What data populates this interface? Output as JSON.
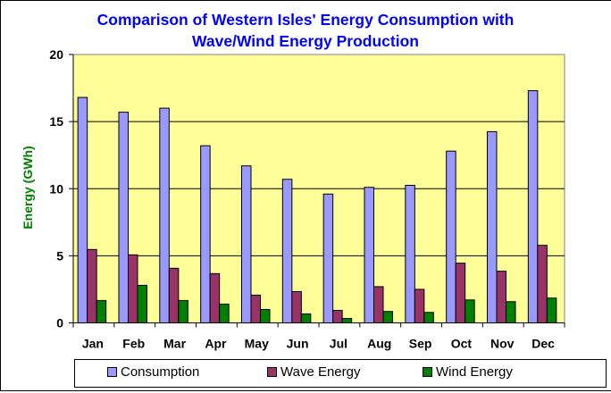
{
  "chart_data": {
    "type": "bar",
    "title": "Comparison of Western Isles' Energy Consumption with Wave/Wind Energy Production",
    "title_lines": [
      "Comparison of Western Isles' Energy Consumption with",
      "Wave/Wind Energy Production"
    ],
    "xlabel": "",
    "ylabel": "Energy (GWh)",
    "ylim": [
      0,
      20
    ],
    "yticks": [
      0,
      5,
      10,
      15,
      20
    ],
    "grid": true,
    "legend_position": "bottom",
    "categories": [
      "Jan",
      "Feb",
      "Mar",
      "Apr",
      "May",
      "Jun",
      "Jul",
      "Aug",
      "Sep",
      "Oct",
      "Nov",
      "Dec"
    ],
    "series": [
      {
        "name": "Consumption",
        "color": "#9999FF",
        "values": [
          16.8,
          15.7,
          16.0,
          13.2,
          11.7,
          10.7,
          9.6,
          10.1,
          10.25,
          12.8,
          14.25,
          17.3
        ]
      },
      {
        "name": "Wave Energy",
        "color": "#993366",
        "values": [
          5.47,
          5.07,
          4.07,
          3.67,
          2.07,
          2.33,
          0.93,
          2.7,
          2.5,
          4.45,
          3.85,
          5.78
        ]
      },
      {
        "name": "Wind Energy",
        "color": "#008000",
        "values": [
          1.67,
          2.8,
          1.67,
          1.4,
          1.0,
          0.67,
          0.33,
          0.85,
          0.78,
          1.71,
          1.58,
          1.85
        ]
      }
    ]
  },
  "colors": {
    "title": "#0000FF",
    "ylabel": "#008000",
    "plot_background": "#FFFF99"
  }
}
